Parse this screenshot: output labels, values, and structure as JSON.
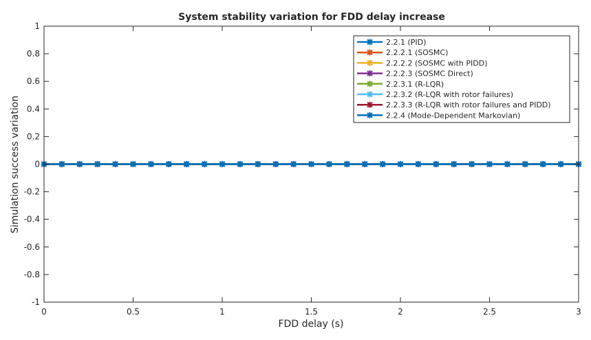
{
  "chart_data": {
    "type": "line",
    "title": "System stability variation for FDD delay increase",
    "xlabel": "FDD delay (s)",
    "ylabel": "Simulation success variation",
    "xlim": [
      0,
      3
    ],
    "ylim": [
      -1,
      1
    ],
    "xticks": [
      0,
      0.5,
      1,
      1.5,
      2,
      2.5,
      3
    ],
    "xtick_labels": [
      "0",
      "0.5",
      "1",
      "1.5",
      "2",
      "2.5",
      "3"
    ],
    "yticks": [
      -1,
      -0.8,
      -0.6,
      -0.4,
      -0.2,
      0,
      0.2,
      0.4,
      0.6,
      0.8,
      1
    ],
    "ytick_labels": [
      "-1",
      "-0.8",
      "-0.6",
      "-0.4",
      "-0.2",
      "0",
      "0.2",
      "0.4",
      "0.6",
      "0.8",
      "1"
    ],
    "grid": false,
    "legend_position": "top-right",
    "x": [
      0,
      0.1,
      0.2,
      0.3,
      0.4,
      0.5,
      0.6,
      0.7,
      0.8,
      0.9,
      1.0,
      1.1,
      1.2,
      1.3,
      1.4,
      1.5,
      1.6,
      1.7,
      1.8,
      1.9,
      2.0,
      2.1,
      2.2,
      2.3,
      2.4,
      2.5,
      2.6,
      2.7,
      2.8,
      2.9,
      3.0
    ],
    "series": [
      {
        "name": "2.2.1 (PID)",
        "color": "#0072BD",
        "values": [
          0,
          0,
          0,
          0,
          0,
          0,
          0,
          0,
          0,
          0,
          0,
          0,
          0,
          0,
          0,
          0,
          0,
          0,
          0,
          0,
          0,
          0,
          0,
          0,
          0,
          0,
          0,
          0,
          0,
          0,
          0
        ]
      },
      {
        "name": "2.2.2.1 (SOSMC)",
        "color": "#D95319",
        "values": [
          0,
          0,
          0,
          0,
          0,
          0,
          0,
          0,
          0,
          0,
          0,
          0,
          0,
          0,
          0,
          0,
          0,
          0,
          0,
          0,
          0,
          0,
          0,
          0,
          0,
          0,
          0,
          0,
          0,
          0,
          0
        ]
      },
      {
        "name": "2.2.2.2 (SOSMC with PIDD)",
        "color": "#EDB120",
        "values": [
          0,
          0,
          0,
          0,
          0,
          0,
          0,
          0,
          0,
          0,
          0,
          0,
          0,
          0,
          0,
          0,
          0,
          0,
          0,
          0,
          0,
          0,
          0,
          0,
          0,
          0,
          0,
          0,
          0,
          0,
          0
        ]
      },
      {
        "name": "2.2.2.3 (SOSMC Direct)",
        "color": "#7E2F8E",
        "values": [
          0,
          0,
          0,
          0,
          0,
          0,
          0,
          0,
          0,
          0,
          0,
          0,
          0,
          0,
          0,
          0,
          0,
          0,
          0,
          0,
          0,
          0,
          0,
          0,
          0,
          0,
          0,
          0,
          0,
          0,
          0
        ]
      },
      {
        "name": "2.2.3.1 (R-LQR)",
        "color": "#77AC30",
        "values": [
          0,
          0,
          0,
          0,
          0,
          0,
          0,
          0,
          0,
          0,
          0,
          0,
          0,
          0,
          0,
          0,
          0,
          0,
          0,
          0,
          0,
          0,
          0,
          0,
          0,
          0,
          0,
          0,
          0,
          0,
          0
        ]
      },
      {
        "name": "2.2.3.2 (R-LQR with rotor failures)",
        "color": "#4DBEEE",
        "values": [
          0,
          0,
          0,
          0,
          0,
          0,
          0,
          0,
          0,
          0,
          0,
          0,
          0,
          0,
          0,
          0,
          0,
          0,
          0,
          0,
          0,
          0,
          0,
          0,
          0,
          0,
          0,
          0,
          0,
          0,
          0
        ]
      },
      {
        "name": "2.2.3.3 (R-LQR with rotor failures and PIDD)",
        "color": "#A2142F",
        "values": [
          0,
          0,
          0,
          0,
          0,
          0,
          0,
          0,
          0,
          0,
          0,
          0,
          0,
          0,
          0,
          0,
          0,
          0,
          0,
          0,
          0,
          0,
          0,
          0,
          0,
          0,
          0,
          0,
          0,
          0,
          0
        ]
      },
      {
        "name": "2.2.4 (Mode-Dependent Markovian)",
        "color": "#0072BD",
        "values": [
          0,
          0,
          0,
          0,
          0,
          0,
          0,
          0,
          0,
          0,
          0,
          0,
          0,
          0,
          0,
          0,
          0,
          0,
          0,
          0,
          0,
          0,
          0,
          0,
          0,
          0,
          0,
          0,
          0,
          0,
          0
        ]
      }
    ]
  }
}
